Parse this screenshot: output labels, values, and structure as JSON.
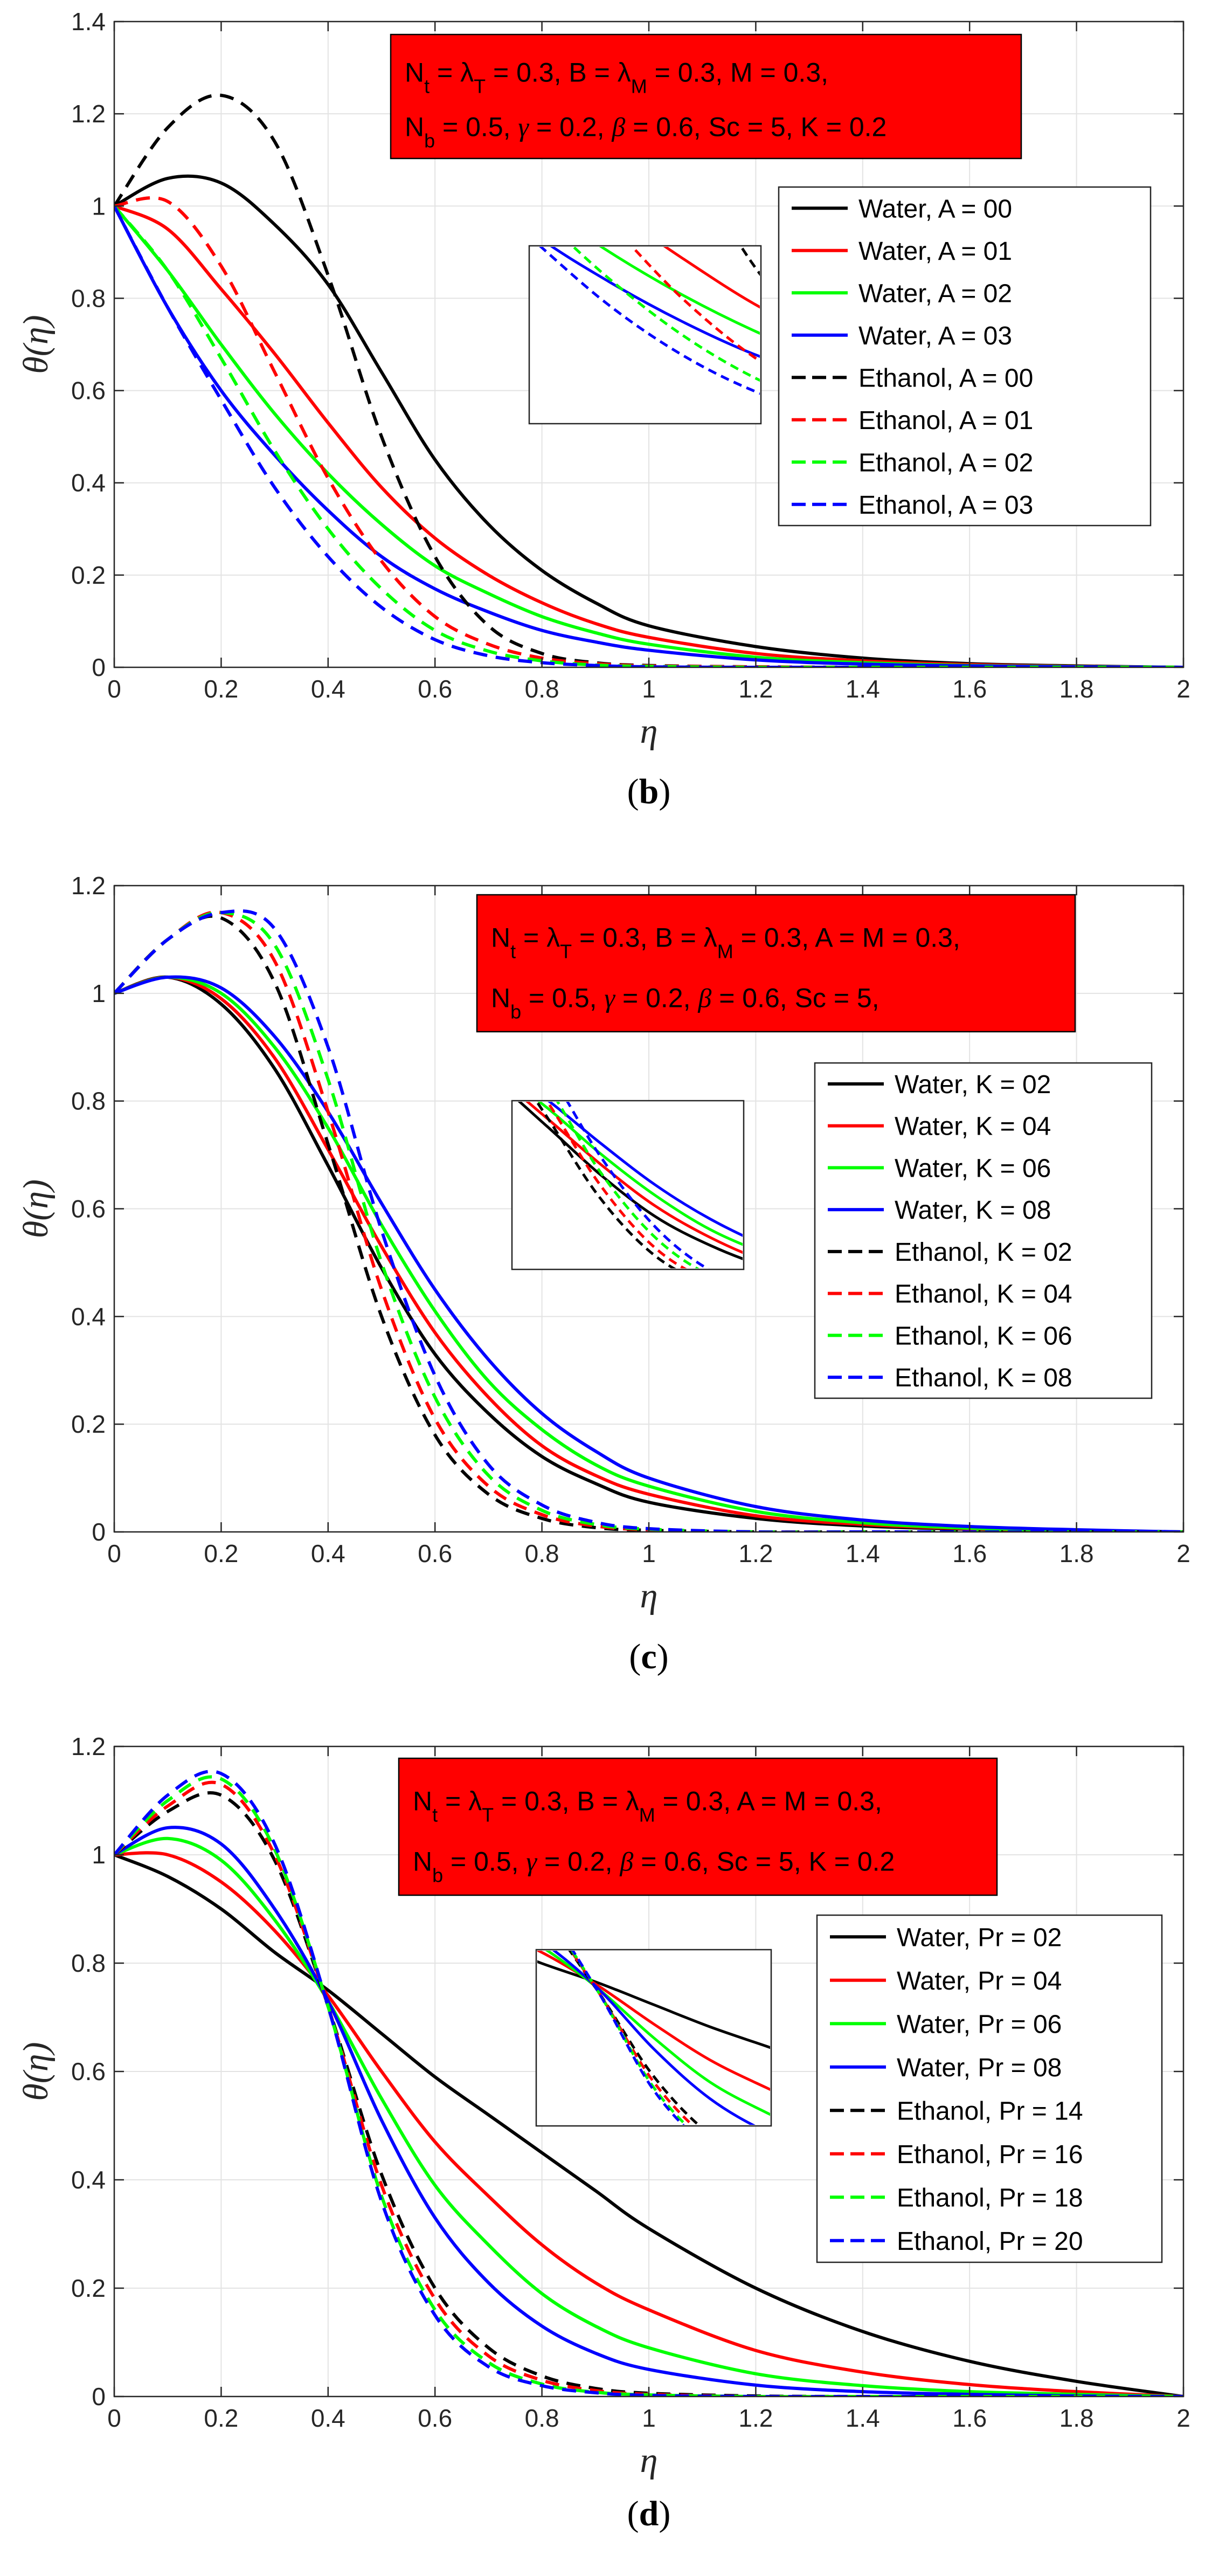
{
  "chart_data": [
    {
      "type": "line",
      "panel_label": "b",
      "xlabel": "η",
      "ylabel": "θ(η)",
      "xlim": [
        0,
        2
      ],
      "ylim": [
        0,
        1.4
      ],
      "xticks": [
        "0",
        "0.2",
        "0.4",
        "0.6",
        "0.8",
        "1",
        "1.2",
        "1.4",
        "1.6",
        "1.8",
        "2"
      ],
      "yticks": [
        "0",
        "0.2",
        "0.4",
        "0.6",
        "0.8",
        "1",
        "1.2",
        "1.4"
      ],
      "grid": true,
      "param_box": {
        "line1": "N_t = λ_T = 0.3, B = λ_M = 0.3, M = 0.3,",
        "line2": "N_b = 0.5, γ = 0.2, β = 0.6, Sc = 5, K = 0.2"
      },
      "legend_location": "right",
      "x": [
        0,
        0.1,
        0.2,
        0.3,
        0.4,
        0.5,
        0.6,
        0.7,
        0.8,
        0.9,
        1.0,
        1.2,
        1.4,
        1.6,
        1.8,
        2.0
      ],
      "series": [
        {
          "name": "Water, A = 00",
          "color": "#000000",
          "dash": "solid",
          "values": [
            1.0,
            1.06,
            1.05,
            0.96,
            0.83,
            0.64,
            0.45,
            0.31,
            0.21,
            0.14,
            0.09,
            0.045,
            0.02,
            0.008,
            0.003,
            0.0
          ]
        },
        {
          "name": "Water, A = 01",
          "color": "#ff0000",
          "dash": "solid",
          "values": [
            1.0,
            0.95,
            0.82,
            0.68,
            0.53,
            0.39,
            0.28,
            0.2,
            0.14,
            0.095,
            0.065,
            0.03,
            0.014,
            0.006,
            0.002,
            0.0
          ]
        },
        {
          "name": "Water, A = 02",
          "color": "#00ff00",
          "dash": "solid",
          "values": [
            1.0,
            0.86,
            0.7,
            0.55,
            0.42,
            0.31,
            0.22,
            0.16,
            0.11,
            0.075,
            0.05,
            0.022,
            0.01,
            0.004,
            0.0015,
            0.0
          ]
        },
        {
          "name": "Water, A = 03",
          "color": "#0000ff",
          "dash": "solid",
          "values": [
            1.0,
            0.78,
            0.6,
            0.46,
            0.34,
            0.24,
            0.17,
            0.12,
            0.08,
            0.055,
            0.037,
            0.016,
            0.007,
            0.003,
            0.001,
            0.0
          ]
        },
        {
          "name": "Ethanol, A = 00",
          "color": "#000000",
          "dash": "dashed",
          "values": [
            1.0,
            1.17,
            1.24,
            1.14,
            0.85,
            0.5,
            0.24,
            0.09,
            0.03,
            0.01,
            0.004,
            0.001,
            0.0,
            0.0,
            0.0,
            0.0
          ]
        },
        {
          "name": "Ethanol, A = 01",
          "color": "#ff0000",
          "dash": "dashed",
          "values": [
            1.0,
            1.01,
            0.87,
            0.64,
            0.41,
            0.23,
            0.11,
            0.05,
            0.02,
            0.008,
            0.003,
            0.001,
            0.0,
            0.0,
            0.0,
            0.0
          ]
        },
        {
          "name": "Ethanol, A = 02",
          "color": "#00ff00",
          "dash": "dashed",
          "values": [
            1.0,
            0.86,
            0.67,
            0.47,
            0.3,
            0.17,
            0.08,
            0.035,
            0.014,
            0.005,
            0.002,
            0.0,
            0.0,
            0.0,
            0.0,
            0.0
          ]
        },
        {
          "name": "Ethanol, A = 03",
          "color": "#0000ff",
          "dash": "dashed",
          "values": [
            1.0,
            0.78,
            0.58,
            0.39,
            0.24,
            0.13,
            0.06,
            0.025,
            0.01,
            0.004,
            0.001,
            0.0,
            0.0,
            0.0,
            0.0,
            0.0
          ]
        }
      ]
    },
    {
      "type": "line",
      "panel_label": "c",
      "xlabel": "η",
      "ylabel": "θ(η)",
      "xlim": [
        0,
        2
      ],
      "ylim": [
        0,
        1.2
      ],
      "xticks": [
        "0",
        "0.2",
        "0.4",
        "0.6",
        "0.8",
        "1",
        "1.2",
        "1.4",
        "1.6",
        "1.8",
        "2"
      ],
      "yticks": [
        "0",
        "0.2",
        "0.4",
        "0.6",
        "0.8",
        "1",
        "1.2"
      ],
      "grid": true,
      "param_box": {
        "line1": "N_t = λ_T = 0.3, B = λ_M = 0.3, A = M = 0.3,",
        "line2": "N_b = 0.5, γ = 0.2, β = 0.6, Sc = 5,"
      },
      "legend_location": "right",
      "x": [
        0,
        0.1,
        0.2,
        0.3,
        0.4,
        0.5,
        0.6,
        0.7,
        0.8,
        0.9,
        1.0,
        1.2,
        1.4,
        1.6,
        1.8,
        2.0
      ],
      "series": [
        {
          "name": "Water, K = 02",
          "color": "#000000",
          "dash": "solid",
          "values": [
            1.0,
            1.03,
            0.98,
            0.86,
            0.68,
            0.49,
            0.33,
            0.22,
            0.14,
            0.09,
            0.055,
            0.025,
            0.011,
            0.005,
            0.002,
            0.0
          ]
        },
        {
          "name": "Water, K = 04",
          "color": "#ff0000",
          "dash": "solid",
          "values": [
            1.0,
            1.03,
            0.99,
            0.88,
            0.71,
            0.53,
            0.37,
            0.25,
            0.16,
            0.105,
            0.07,
            0.03,
            0.014,
            0.006,
            0.002,
            0.0
          ]
        },
        {
          "name": "Water, K = 06",
          "color": "#00ff00",
          "dash": "solid",
          "values": [
            1.0,
            1.03,
            1.0,
            0.9,
            0.75,
            0.57,
            0.41,
            0.28,
            0.19,
            0.125,
            0.085,
            0.038,
            0.017,
            0.007,
            0.003,
            0.0
          ]
        },
        {
          "name": "Water, K = 08",
          "color": "#0000ff",
          "dash": "solid",
          "values": [
            1.0,
            1.03,
            1.01,
            0.92,
            0.78,
            0.61,
            0.45,
            0.32,
            0.22,
            0.15,
            0.1,
            0.047,
            0.022,
            0.01,
            0.004,
            0.0
          ]
        },
        {
          "name": "Ethanol, K = 02",
          "color": "#000000",
          "dash": "dashed",
          "values": [
            1.0,
            1.1,
            1.14,
            1.02,
            0.72,
            0.4,
            0.18,
            0.07,
            0.025,
            0.008,
            0.003,
            0.0,
            0.0,
            0.0,
            0.0,
            0.0
          ]
        },
        {
          "name": "Ethanol, K = 04",
          "color": "#ff0000",
          "dash": "dashed",
          "values": [
            1.0,
            1.1,
            1.15,
            1.06,
            0.78,
            0.45,
            0.21,
            0.085,
            0.032,
            0.011,
            0.004,
            0.0,
            0.0,
            0.0,
            0.0,
            0.0
          ]
        },
        {
          "name": "Ethanol, K = 06",
          "color": "#00ff00",
          "dash": "dashed",
          "values": [
            1.0,
            1.1,
            1.15,
            1.09,
            0.84,
            0.5,
            0.25,
            0.105,
            0.04,
            0.014,
            0.005,
            0.0,
            0.0,
            0.0,
            0.0,
            0.0
          ]
        },
        {
          "name": "Ethanol, K = 08",
          "color": "#0000ff",
          "dash": "dashed",
          "values": [
            1.0,
            1.1,
            1.15,
            1.12,
            0.9,
            0.56,
            0.29,
            0.125,
            0.05,
            0.018,
            0.006,
            0.0,
            0.0,
            0.0,
            0.0,
            0.0
          ]
        }
      ]
    },
    {
      "type": "line",
      "panel_label": "d",
      "xlabel": "η",
      "ylabel": "θ(η)",
      "xlim": [
        0,
        2
      ],
      "ylim": [
        0,
        1.2
      ],
      "xticks": [
        "0",
        "0.2",
        "0.4",
        "0.6",
        "0.8",
        "1",
        "1.2",
        "1.4",
        "1.6",
        "1.8",
        "2"
      ],
      "yticks": [
        "0",
        "0.2",
        "0.4",
        "0.6",
        "0.8",
        "1",
        "1.2"
      ],
      "grid": true,
      "param_box": {
        "line1": "N_t = λ_T = 0.3, B = λ_M = 0.3, A = M = 0.3,",
        "line2": "N_b = 0.5, γ = 0.2, β = 0.6, Sc = 5, K = 0.2"
      },
      "legend_location": "right",
      "x": [
        0,
        0.1,
        0.2,
        0.3,
        0.4,
        0.5,
        0.6,
        0.7,
        0.8,
        0.9,
        1.0,
        1.2,
        1.4,
        1.6,
        1.8,
        2.0
      ],
      "series": [
        {
          "name": "Water, Pr = 02",
          "color": "#000000",
          "dash": "solid",
          "values": [
            1.0,
            0.96,
            0.9,
            0.82,
            0.75,
            0.67,
            0.59,
            0.52,
            0.45,
            0.38,
            0.31,
            0.2,
            0.12,
            0.065,
            0.028,
            0.0
          ]
        },
        {
          "name": "Water, Pr = 04",
          "color": "#ff0000",
          "dash": "solid",
          "values": [
            1.0,
            1.0,
            0.95,
            0.86,
            0.74,
            0.6,
            0.47,
            0.37,
            0.28,
            0.21,
            0.16,
            0.085,
            0.045,
            0.022,
            0.009,
            0.0
          ]
        },
        {
          "name": "Water, Pr = 06",
          "color": "#00ff00",
          "dash": "solid",
          "values": [
            1.0,
            1.03,
            0.99,
            0.88,
            0.73,
            0.55,
            0.39,
            0.28,
            0.19,
            0.13,
            0.09,
            0.042,
            0.02,
            0.009,
            0.004,
            0.0
          ]
        },
        {
          "name": "Water, Pr = 08",
          "color": "#0000ff",
          "dash": "solid",
          "values": [
            1.0,
            1.05,
            1.02,
            0.9,
            0.73,
            0.51,
            0.33,
            0.21,
            0.13,
            0.08,
            0.05,
            0.021,
            0.009,
            0.004,
            0.001,
            0.0
          ]
        },
        {
          "name": "Ethanol, Pr = 14",
          "color": "#000000",
          "dash": "dashed",
          "values": [
            1.0,
            1.08,
            1.11,
            0.99,
            0.72,
            0.41,
            0.2,
            0.09,
            0.038,
            0.015,
            0.006,
            0.001,
            0.0,
            0.0,
            0.0,
            0.0
          ]
        },
        {
          "name": "Ethanol, Pr = 16",
          "color": "#ff0000",
          "dash": "dashed",
          "values": [
            1.0,
            1.09,
            1.13,
            1.0,
            0.72,
            0.39,
            0.18,
            0.075,
            0.03,
            0.011,
            0.004,
            0.0,
            0.0,
            0.0,
            0.0,
            0.0
          ]
        },
        {
          "name": "Ethanol, Pr = 18",
          "color": "#00ff00",
          "dash": "dashed",
          "values": [
            1.0,
            1.1,
            1.14,
            1.01,
            0.72,
            0.37,
            0.16,
            0.063,
            0.023,
            0.008,
            0.003,
            0.0,
            0.0,
            0.0,
            0.0,
            0.0
          ]
        },
        {
          "name": "Ethanol, Pr = 20",
          "color": "#0000ff",
          "dash": "dashed",
          "values": [
            1.0,
            1.11,
            1.15,
            1.02,
            0.72,
            0.36,
            0.15,
            0.055,
            0.02,
            0.007,
            0.002,
            0.0,
            0.0,
            0.0,
            0.0,
            0.0
          ]
        }
      ]
    }
  ]
}
